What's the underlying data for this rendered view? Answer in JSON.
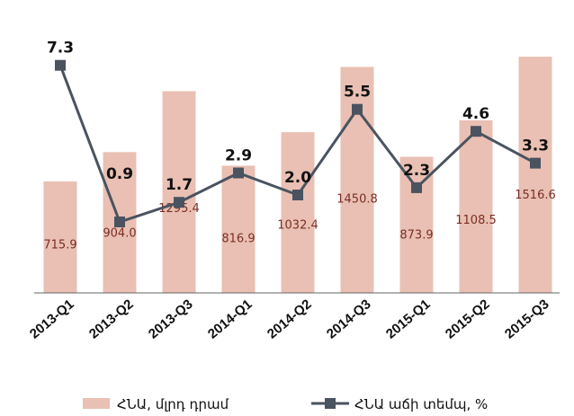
{
  "chart_data": {
    "type": "bar",
    "categories": [
      "2013-Q1",
      "2013-Q2",
      "2013-Q3",
      "2014-Q1",
      "2014-Q2",
      "2014-Q3",
      "2015-Q1",
      "2015-Q2",
      "2015-Q3"
    ],
    "series": [
      {
        "name": "ՀՆԱ, մլրդ դրամ",
        "type": "bar",
        "axis": "left",
        "color": "#e9c0b3",
        "values": [
          715.9,
          904.0,
          1295.4,
          816.9,
          1032.4,
          1450.8,
          873.9,
          1108.5,
          1516.6
        ],
        "labels": [
          "715.9",
          "904.0",
          "1295.4",
          "816.9",
          "1032.4",
          "1450.8",
          "873.9",
          "1108.5",
          "1516.6"
        ]
      },
      {
        "name": "ՀՆԱ աճի տեմպ, %",
        "type": "line",
        "axis": "right",
        "color": "#4a5360",
        "marker": "square",
        "values": [
          7.3,
          0.9,
          1.7,
          2.9,
          2.0,
          5.5,
          2.3,
          4.6,
          3.3
        ],
        "labels": [
          "7.3",
          "0.9",
          "1.7",
          "2.9",
          "2.0",
          "5.5",
          "2.3",
          "4.6",
          "3.3"
        ]
      }
    ],
    "ylim_left": [
      0,
      1650
    ],
    "ylim_right": [
      -2,
      8.5
    ],
    "grid": false,
    "legend_position": "bottom"
  }
}
